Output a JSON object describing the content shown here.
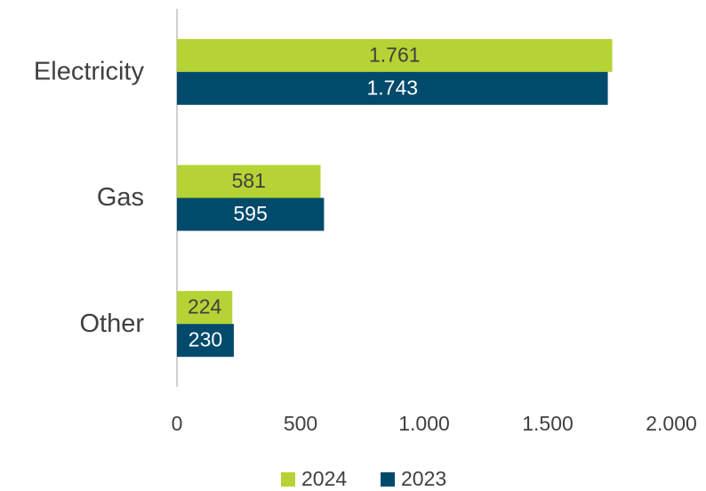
{
  "chart_data": {
    "type": "barh",
    "categories": [
      "Electricity",
      "Gas",
      "Other"
    ],
    "series": [
      {
        "name": "2024",
        "color": "#b5d334",
        "label_color": "#404040",
        "values": [
          1761,
          581,
          224
        ],
        "value_labels": [
          "1.761",
          "581",
          "224"
        ]
      },
      {
        "name": "2023",
        "color": "#004a6b",
        "label_color": "#ffffff",
        "values": [
          1743,
          595,
          230
        ],
        "value_labels": [
          "1.743",
          "595",
          "230"
        ]
      }
    ],
    "xlim": [
      0,
      2000
    ],
    "xticks": [
      0,
      500,
      {
        "value": 1000,
        "label": "1.000"
      },
      {
        "value": 1500,
        "label": "1.500"
      },
      {
        "value": 2000,
        "label": "2.000"
      }
    ],
    "legend": "bottom"
  }
}
